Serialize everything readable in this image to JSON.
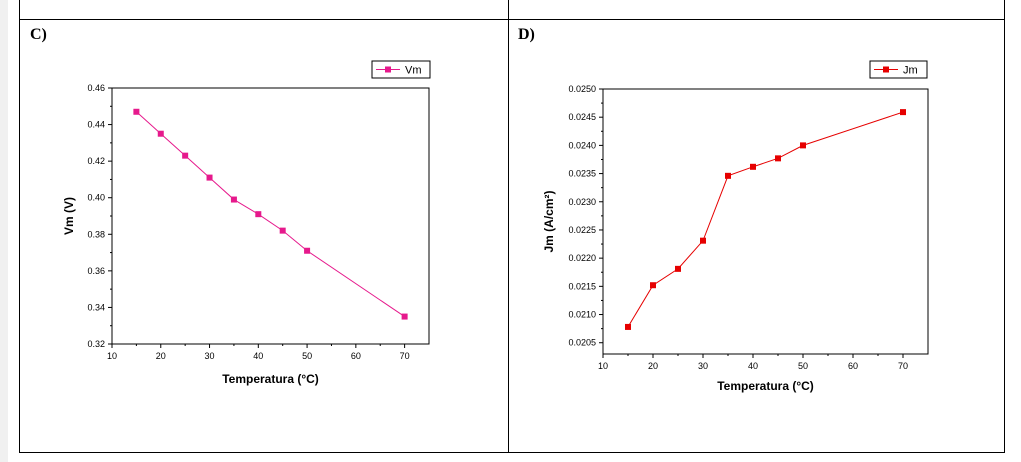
{
  "panels": [
    {
      "label": "C)"
    },
    {
      "label": "D)"
    }
  ],
  "chart_data": [
    {
      "type": "line",
      "xlabel": "Temperatura (°C)",
      "ylabel": "Vm (V)",
      "xlim": [
        10,
        75
      ],
      "ylim": [
        0.32,
        0.46
      ],
      "xticks": [
        "10",
        "20",
        "30",
        "40",
        "50",
        "60",
        "70"
      ],
      "yticks": [
        "0.32",
        "0.34",
        "0.36",
        "0.38",
        "0.40",
        "0.42",
        "0.44",
        "0.46"
      ],
      "legend_position": "top-right",
      "series": [
        {
          "name": "Vm",
          "color": "#e6198c",
          "x": [
            15,
            20,
            25,
            30,
            35,
            40,
            45,
            50,
            70
          ],
          "y": [
            0.447,
            0.435,
            0.423,
            0.411,
            0.399,
            0.391,
            0.382,
            0.371,
            0.335
          ]
        }
      ]
    },
    {
      "type": "line",
      "xlabel": "Temperatura (°C)",
      "ylabel": "Jm (A/cm²)",
      "xlim": [
        10,
        75
      ],
      "ylim": [
        0.0203,
        0.025
      ],
      "xticks": [
        "10",
        "20",
        "30",
        "40",
        "50",
        "60",
        "70"
      ],
      "yticks": [
        "0.0205",
        "0.0210",
        "0.0215",
        "0.0220",
        "0.0225",
        "0.0230",
        "0.0235",
        "0.0240",
        "0.0245",
        "0.0250"
      ],
      "legend_position": "top-right",
      "series": [
        {
          "name": "Jm",
          "color": "#e60000",
          "x": [
            15,
            20,
            25,
            30,
            35,
            40,
            45,
            50,
            70
          ],
          "y": [
            0.02078,
            0.02152,
            0.02181,
            0.02231,
            0.02346,
            0.02362,
            0.02377,
            0.024,
            0.02459
          ]
        }
      ]
    }
  ]
}
